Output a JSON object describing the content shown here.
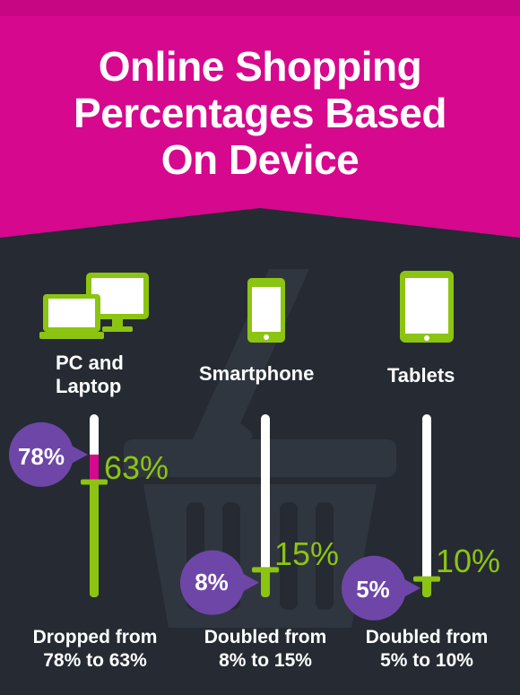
{
  "title": {
    "line1": "Online Shopping",
    "line2": "Percentages Based",
    "line3": "On Device"
  },
  "colors": {
    "header": "#d6088d",
    "background": "#252a33",
    "fill": "#8cc412",
    "bubble": "#6e46a8",
    "tube": "#ffffff",
    "decline": "#d6088d"
  },
  "chart_data": {
    "type": "bar",
    "categories": [
      "PC and Laptop",
      "Smartphone",
      "Tablets"
    ],
    "series": [
      {
        "values": [
          78,
          8,
          5
        ]
      },
      {
        "values": [
          63,
          15,
          10
        ]
      }
    ],
    "ylim": [
      0,
      100
    ],
    "captions": [
      [
        "Dropped from",
        "78% to 63%"
      ],
      [
        "Doubled from",
        "8% to 15%"
      ],
      [
        "Doubled from",
        "5% to 10%"
      ]
    ]
  },
  "devices": [
    {
      "label_line1": "PC and",
      "label_line2": "Laptop",
      "icon": "computer-laptop-icon",
      "old_label": "78%",
      "new_label": "63%"
    },
    {
      "label_line1": "Smartphone",
      "label_line2": "",
      "icon": "smartphone-icon",
      "old_label": "8%",
      "new_label": "15%"
    },
    {
      "label_line1": "Tablets",
      "label_line2": "",
      "icon": "tablet-icon",
      "old_label": "5%",
      "new_label": "10%"
    }
  ]
}
